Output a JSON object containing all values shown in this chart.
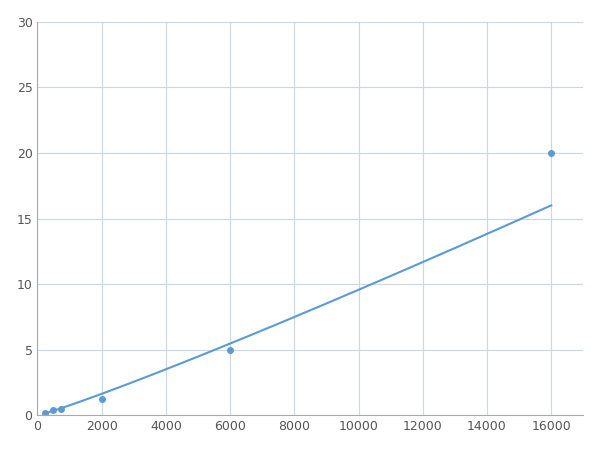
{
  "x": [
    250,
    500,
    750,
    2000,
    6000,
    16000
  ],
  "y": [
    0.2,
    0.4,
    0.5,
    1.25,
    5.0,
    20.0
  ],
  "line_color": "#5B9BD5",
  "marker_color": "#5B9BD5",
  "marker_size": 4,
  "xlim": [
    0,
    17000
  ],
  "ylim": [
    0,
    30
  ],
  "xticks": [
    0,
    2000,
    4000,
    6000,
    8000,
    10000,
    12000,
    14000,
    16000
  ],
  "yticks": [
    0,
    5,
    10,
    15,
    20,
    25,
    30
  ],
  "grid_color": "#C8D8E8",
  "background_color": "#FFFFFF",
  "figsize": [
    6.0,
    4.5
  ],
  "dpi": 100
}
